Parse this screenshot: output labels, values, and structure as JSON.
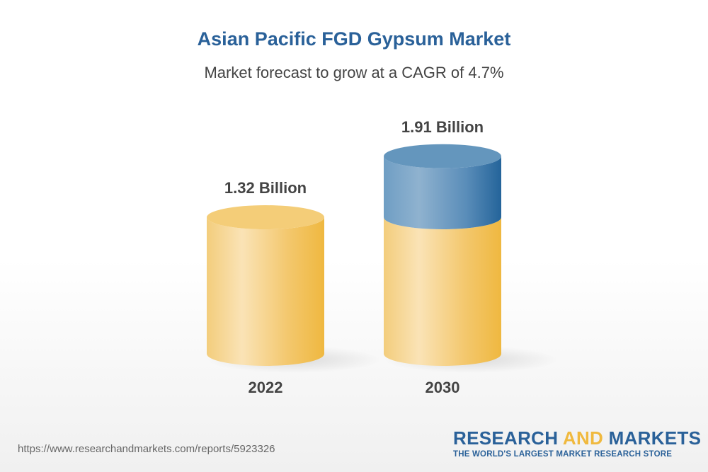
{
  "header": {
    "title": "Asian Pacific FGD Gypsum Market",
    "subtitle": "Market forecast to grow at a CAGR of 4.7%"
  },
  "chart_data": {
    "type": "bar",
    "style": "3d-cylinder",
    "categories": [
      "2022",
      "2030"
    ],
    "values": [
      1.32,
      1.91
    ],
    "data_labels": [
      "1.32 Billion",
      "1.91 Billion"
    ],
    "colors": {
      "base": "#f0b93e",
      "growth": "#2a6199"
    }
  },
  "footer": {
    "url": "https://www.researchandmarkets.com/reports/5923326",
    "logo": {
      "part1": "RESEARCH ",
      "part2": "AND",
      "part3": " MARKETS",
      "tagline": "THE WORLD'S LARGEST MARKET RESEARCH STORE"
    }
  }
}
